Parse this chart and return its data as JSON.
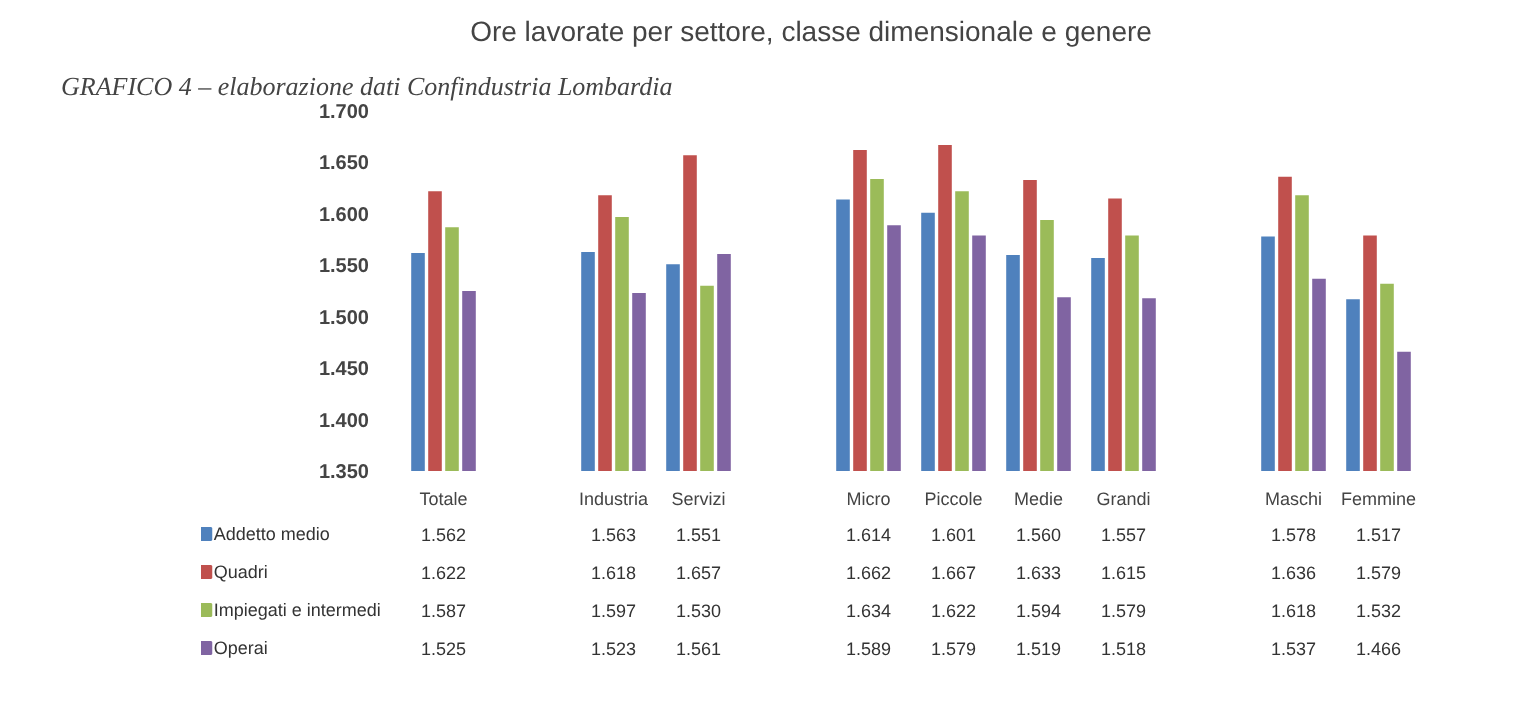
{
  "chart_data": {
    "type": "bar",
    "title": "Ore lavorate per settore, classe dimensionale e genere",
    "annotations": [
      "GRAFICO 4 – elaborazione dati Confindustria Lombardia"
    ],
    "categories": [
      "Totale",
      null,
      "Industria",
      "Servizi",
      null,
      "Micro",
      "Piccole",
      "Medie",
      "Grandi",
      null,
      "Maschi",
      "Femmine"
    ],
    "series": [
      {
        "name": "Addetto medio",
        "color": "#4f81bd",
        "values": [
          1.562,
          null,
          1.563,
          1.551,
          null,
          1.614,
          1.601,
          1.56,
          1.557,
          null,
          1.578,
          1.517
        ],
        "value_labels": [
          "1.562",
          null,
          "1.563",
          "1.551",
          null,
          "1.614",
          "1.601",
          "1.560",
          "1.557",
          null,
          "1.578",
          "1.517"
        ]
      },
      {
        "name": "Quadri",
        "color": "#c0504d",
        "values": [
          1.622,
          null,
          1.618,
          1.657,
          null,
          1.662,
          1.667,
          1.633,
          1.615,
          null,
          1.636,
          1.579
        ],
        "value_labels": [
          "1.622",
          null,
          "1.618",
          "1.657",
          null,
          "1.662",
          "1.667",
          "1.633",
          "1.615",
          null,
          "1.636",
          "1.579"
        ]
      },
      {
        "name": "Impiegati e intermedi",
        "color": "#9bbb59",
        "values": [
          1.587,
          null,
          1.597,
          1.53,
          null,
          1.634,
          1.622,
          1.594,
          1.579,
          null,
          1.618,
          1.532
        ],
        "value_labels": [
          "1.587",
          null,
          "1.597",
          "1.530",
          null,
          "1.634",
          "1.622",
          "1.594",
          "1.579",
          null,
          "1.618",
          "1.532"
        ]
      },
      {
        "name": "Operai",
        "color": "#8064a2",
        "values": [
          1.525,
          null,
          1.523,
          1.561,
          null,
          1.589,
          1.579,
          1.519,
          1.518,
          null,
          1.537,
          1.466
        ],
        "value_labels": [
          "1.525",
          null,
          "1.523",
          "1.561",
          null,
          "1.589",
          "1.579",
          "1.519",
          "1.518",
          null,
          "1.537",
          "1.466"
        ]
      }
    ],
    "ylim": [
      1.35,
      1.7
    ],
    "yticks": [
      {
        "value": 1.35,
        "label": "1.350"
      },
      {
        "value": 1.4,
        "label": "1.400"
      },
      {
        "value": 1.45,
        "label": "1.450"
      },
      {
        "value": 1.5,
        "label": "1.500"
      },
      {
        "value": 1.55,
        "label": "1.550"
      },
      {
        "value": 1.6,
        "label": "1.600"
      },
      {
        "value": 1.65,
        "label": "1.650"
      },
      {
        "value": 1.7,
        "label": "1.700"
      }
    ],
    "legend": "bottom",
    "grid": false,
    "data_labels": true
  }
}
